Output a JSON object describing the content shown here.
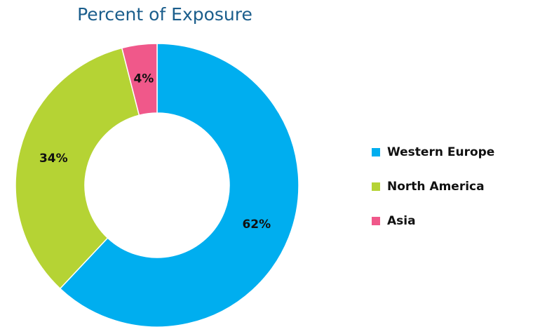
{
  "chart_data": {
    "type": "donut",
    "title": "Percent of Exposure",
    "categories": [
      "Western Europe",
      "North America",
      "Asia"
    ],
    "values": [
      62,
      34,
      4
    ],
    "value_labels": [
      "62%",
      "34%",
      "4%"
    ],
    "colors": [
      "#00aeef",
      "#b5d334",
      "#f0588a"
    ],
    "legend": "right"
  }
}
